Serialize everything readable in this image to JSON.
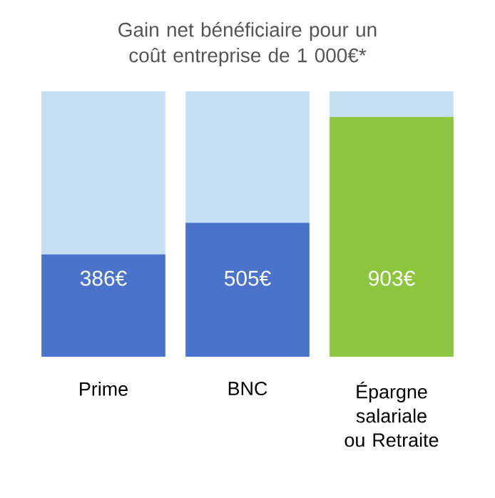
{
  "chart_data": {
    "type": "bar",
    "stacked": true,
    "title": "Gain net bénéficiaire pour un coût entreprise de 1 000€*",
    "categories": [
      "Prime",
      "BNC",
      "Épargne salariale ou Retraite"
    ],
    "series": [
      {
        "colors": [
          "#4a74c9",
          "#4a74c9",
          "#8cc63f"
        ],
        "values": [
          386,
          505,
          903
        ],
        "value_labels": [
          "386€",
          "505€",
          "903€"
        ]
      },
      {
        "color": "#c6e0f1",
        "values": [
          614,
          495,
          97
        ]
      }
    ],
    "ylim": [
      0,
      1000
    ],
    "tick_labels": "x"
  }
}
